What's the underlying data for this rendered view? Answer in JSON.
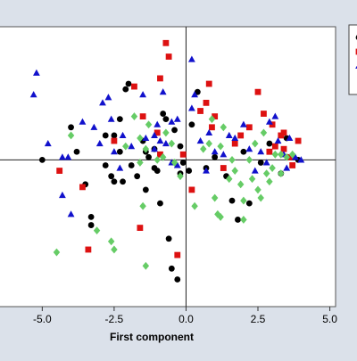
{
  "chart_data": {
    "type": "scatter",
    "title": "",
    "xlabel": "First component",
    "ylabel": "",
    "xlim": [
      -6.5,
      5.2
    ],
    "ylim": [
      -5.4,
      4.9
    ],
    "xticks": [
      -5.0,
      -2.5,
      0.0,
      2.5,
      5.0
    ],
    "xtick_labels": [
      "-5.0",
      "-2.5",
      "0.0",
      "2.5",
      "5.0"
    ],
    "reference_lines": {
      "x": 0,
      "y": 0
    },
    "grid": false,
    "legend_placement": "top-right (partially cropped)",
    "series": [
      {
        "marker": "circle",
        "color": "#000000",
        "points": [
          [
            -5.0,
            0.0
          ],
          [
            -4.0,
            1.2
          ],
          [
            -3.8,
            0.3
          ],
          [
            -3.5,
            -0.9
          ],
          [
            -3.3,
            -2.1
          ],
          [
            -3.3,
            -2.4
          ],
          [
            -2.8,
            0.9
          ],
          [
            -2.8,
            -0.2
          ],
          [
            -2.6,
            -0.6
          ],
          [
            -2.5,
            0.9
          ],
          [
            -2.5,
            -0.8
          ],
          [
            -2.3,
            0.3
          ],
          [
            -2.3,
            1.5
          ],
          [
            -2.2,
            -0.8
          ],
          [
            -2.1,
            2.6
          ],
          [
            -2.0,
            2.8
          ],
          [
            -1.9,
            -0.2
          ],
          [
            -1.7,
            -0.6
          ],
          [
            -1.5,
            0.7
          ],
          [
            -1.4,
            -1.1
          ],
          [
            -1.4,
            0.3
          ],
          [
            -1.3,
            0.1
          ],
          [
            -1.1,
            0.4
          ],
          [
            -1.1,
            -0.3
          ],
          [
            -1.0,
            -0.4
          ],
          [
            -0.9,
            -1.6
          ],
          [
            -0.8,
            1.7
          ],
          [
            -0.7,
            1.5
          ],
          [
            -0.6,
            -2.9
          ],
          [
            -0.4,
            1.1
          ],
          [
            -0.2,
            0.5
          ],
          [
            -0.2,
            -0.5
          ],
          [
            -0.5,
            -4.0
          ],
          [
            -0.3,
            -4.4
          ],
          [
            -0.1,
            -0.1
          ],
          [
            0.1,
            -0.4
          ],
          [
            0.2,
            1.3
          ],
          [
            0.4,
            2.5
          ],
          [
            0.7,
            -0.3
          ],
          [
            1.0,
            0.1
          ],
          [
            1.4,
            -0.6
          ],
          [
            1.6,
            -1.5
          ],
          [
            1.8,
            -2.2
          ],
          [
            2.0,
            0.3
          ],
          [
            2.2,
            -1.6
          ],
          [
            2.6,
            -0.1
          ],
          [
            2.9,
            0.6
          ],
          [
            3.3,
            -0.5
          ],
          [
            3.5,
            0.8
          ],
          [
            3.9,
            0.0
          ]
        ]
      },
      {
        "marker": "square",
        "color": "#dd1111",
        "points": [
          [
            -4.4,
            -0.4
          ],
          [
            -3.6,
            -1.0
          ],
          [
            -3.4,
            -3.3
          ],
          [
            -2.5,
            0.7
          ],
          [
            -1.8,
            2.7
          ],
          [
            -1.6,
            -2.5
          ],
          [
            -1.5,
            1.6
          ],
          [
            -1.0,
            1.0
          ],
          [
            -0.9,
            0.2
          ],
          [
            -0.9,
            3.0
          ],
          [
            -0.7,
            4.3
          ],
          [
            -0.6,
            3.8
          ],
          [
            -0.3,
            -3.5
          ],
          [
            -0.1,
            0.2
          ],
          [
            0.2,
            -1.1
          ],
          [
            0.5,
            1.8
          ],
          [
            0.7,
            2.1
          ],
          [
            0.8,
            2.8
          ],
          [
            0.9,
            1.2
          ],
          [
            1.0,
            1.6
          ],
          [
            1.3,
            -0.3
          ],
          [
            1.7,
            0.6
          ],
          [
            1.9,
            0.9
          ],
          [
            2.2,
            1.2
          ],
          [
            2.5,
            2.5
          ],
          [
            2.7,
            1.7
          ],
          [
            3.0,
            1.3
          ],
          [
            3.1,
            0.5
          ],
          [
            3.3,
            0.9
          ],
          [
            3.4,
            1.0
          ],
          [
            3.6,
            0.1
          ],
          [
            3.7,
            -0.2
          ],
          [
            3.9,
            0.7
          ],
          [
            3.4,
            0.4
          ],
          [
            2.9,
            0.3
          ]
        ]
      },
      {
        "marker": "triangle",
        "color": "#1111cc",
        "points": [
          [
            -5.2,
            3.2
          ],
          [
            -5.3,
            2.4
          ],
          [
            -4.8,
            0.6
          ],
          [
            -4.3,
            0.1
          ],
          [
            -4.1,
            0.1
          ],
          [
            -4.3,
            -1.3
          ],
          [
            -4.0,
            -2.0
          ],
          [
            -3.6,
            1.4
          ],
          [
            -3.2,
            1.2
          ],
          [
            -3.0,
            0.6
          ],
          [
            -2.9,
            2.1
          ],
          [
            -2.7,
            2.3
          ],
          [
            -2.6,
            1.5
          ],
          [
            -2.5,
            0.3
          ],
          [
            -2.3,
            -0.3
          ],
          [
            -2.2,
            0.9
          ],
          [
            -1.9,
            0.5
          ],
          [
            -1.5,
            2.4
          ],
          [
            -1.4,
            0.8
          ],
          [
            -1.1,
            0.4
          ],
          [
            -1.0,
            1.3
          ],
          [
            -0.9,
            0.7
          ],
          [
            -0.8,
            2.5
          ],
          [
            -0.7,
            0.6
          ],
          [
            -0.5,
            -0.1
          ],
          [
            -0.3,
            1.5
          ],
          [
            -0.3,
            -0.2
          ],
          [
            0.2,
            1.9
          ],
          [
            0.2,
            3.7
          ],
          [
            0.3,
            2.4
          ],
          [
            0.5,
            0.7
          ],
          [
            0.7,
            -0.4
          ],
          [
            0.8,
            1.0
          ],
          [
            1.0,
            0.3
          ],
          [
            1.3,
            0.2
          ],
          [
            1.5,
            0.9
          ],
          [
            1.7,
            0.8
          ],
          [
            2.0,
            1.3
          ],
          [
            2.2,
            0.4
          ],
          [
            2.4,
            -0.4
          ],
          [
            2.6,
            0.3
          ],
          [
            2.8,
            -0.1
          ],
          [
            2.9,
            1.4
          ],
          [
            3.1,
            1.6
          ],
          [
            3.2,
            0.7
          ],
          [
            3.4,
            0.2
          ],
          [
            3.5,
            -0.3
          ],
          [
            3.6,
            0.8
          ],
          [
            3.8,
            0.1
          ],
          [
            4.0,
            0.0
          ],
          [
            -1.1,
            0.9
          ],
          [
            -0.5,
            1.4
          ]
        ]
      },
      {
        "marker": "diamond",
        "color": "#66cc66",
        "points": [
          [
            -4.0,
            0.9
          ],
          [
            -3.1,
            -2.6
          ],
          [
            -2.6,
            -3.0
          ],
          [
            -2.5,
            -3.3
          ],
          [
            -2.1,
            0.5
          ],
          [
            -1.8,
            1.6
          ],
          [
            -1.6,
            -0.1
          ],
          [
            -1.5,
            -1.7
          ],
          [
            -1.4,
            0.4
          ],
          [
            -1.3,
            1.3
          ],
          [
            -1.0,
            0.0
          ],
          [
            -0.8,
            0.1
          ],
          [
            -0.7,
            1.0
          ],
          [
            -0.5,
            0.6
          ],
          [
            -0.4,
            -0.1
          ],
          [
            -1.4,
            -3.9
          ],
          [
            0.3,
            -1.7
          ],
          [
            0.6,
            0.4
          ],
          [
            0.8,
            0.6
          ],
          [
            1.0,
            -1.4
          ],
          [
            1.1,
            -2.0
          ],
          [
            1.2,
            0.5
          ],
          [
            1.5,
            -0.7
          ],
          [
            1.7,
            -0.4
          ],
          [
            1.9,
            -0.9
          ],
          [
            2.0,
            -1.5
          ],
          [
            2.2,
            0.0
          ],
          [
            2.3,
            -0.7
          ],
          [
            2.5,
            -1.1
          ],
          [
            2.6,
            -1.4
          ],
          [
            2.7,
            1.0
          ],
          [
            2.8,
            -0.5
          ],
          [
            3.0,
            -0.3
          ],
          [
            3.1,
            0.2
          ],
          [
            3.3,
            -0.5
          ],
          [
            3.5,
            0.1
          ],
          [
            3.7,
            0.2
          ],
          [
            1.3,
            1.2
          ],
          [
            0.9,
            1.5
          ],
          [
            2.4,
            0.6
          ],
          [
            1.6,
            0.0
          ],
          [
            -1.6,
            0.8
          ],
          [
            -0.2,
            -0.6
          ],
          [
            3.3,
            0.2
          ],
          [
            2.9,
            -0.8
          ],
          [
            -4.5,
            -3.4
          ],
          [
            1.2,
            -2.1
          ],
          [
            2.0,
            -2.2
          ]
        ]
      }
    ]
  }
}
